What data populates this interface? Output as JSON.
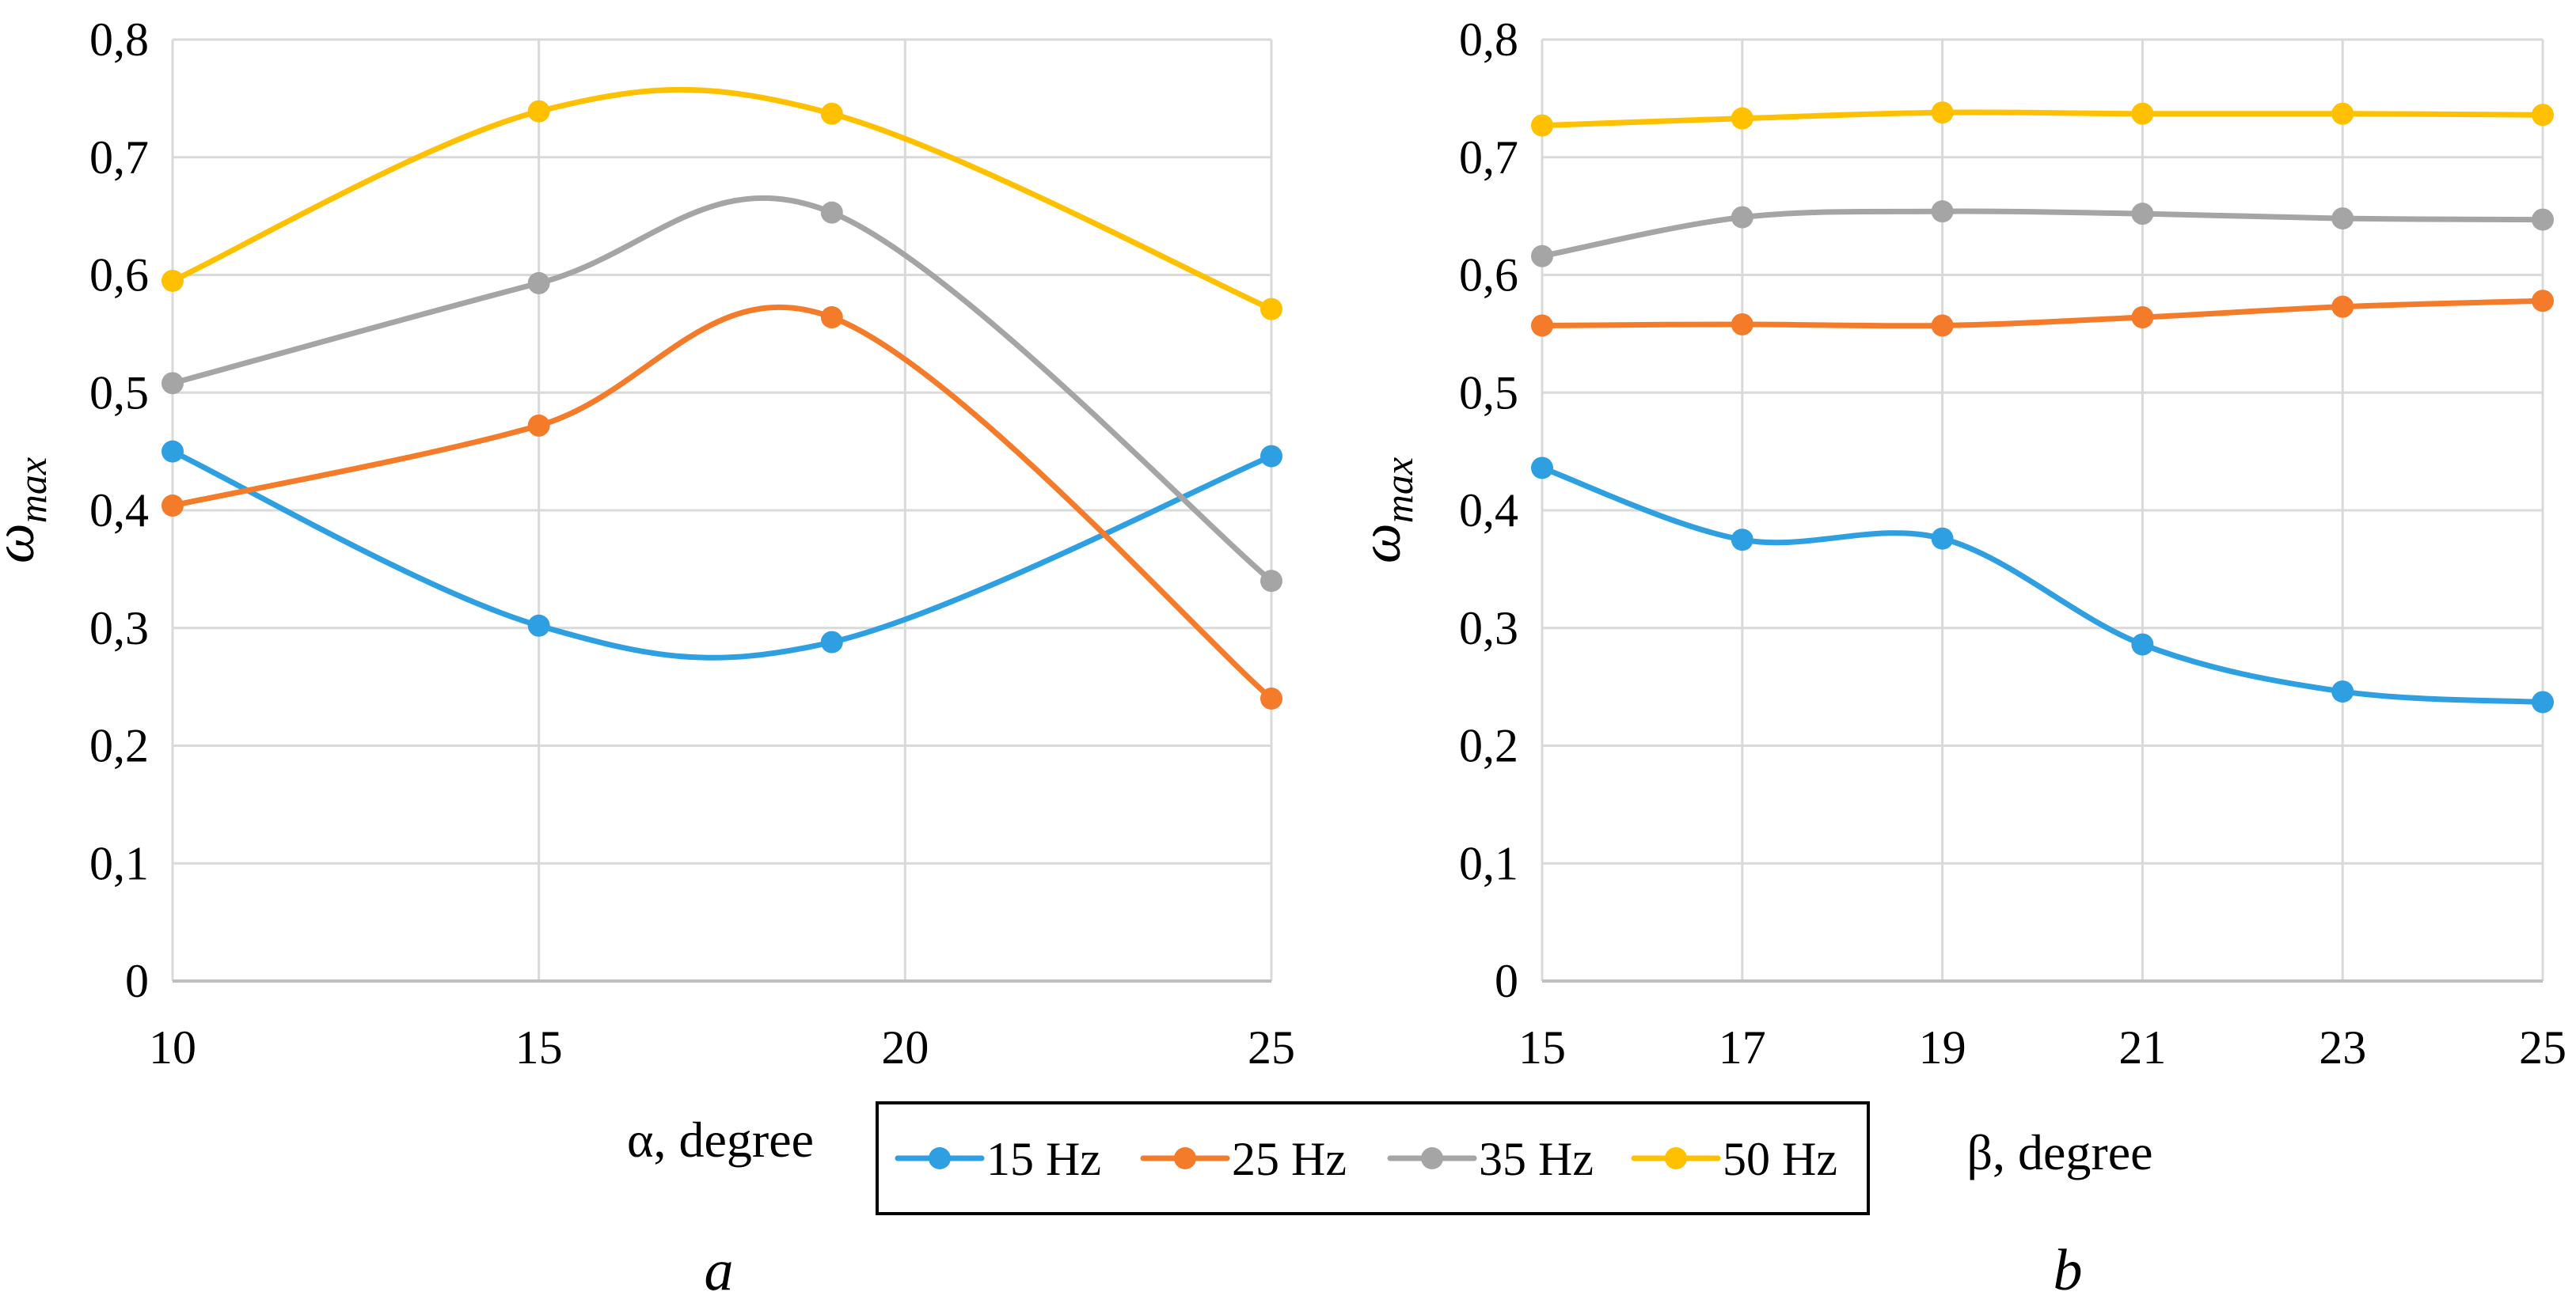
{
  "chart_data": [
    {
      "type": "line",
      "panel_label": "a",
      "xlabel": "α, degree",
      "ylabel": "ω",
      "ylabel_sub": "max",
      "x": [
        10,
        15,
        19,
        25
      ],
      "xticks": [
        "10",
        "15",
        "20",
        "25"
      ],
      "xtick_values": [
        10,
        15,
        20,
        25
      ],
      "xlim": [
        10,
        25
      ],
      "ylim": [
        0,
        0.8
      ],
      "yticks": [
        "0",
        "0,1",
        "0,2",
        "0,3",
        "0,4",
        "0,5",
        "0,6",
        "0,7",
        "0,8"
      ],
      "ytick_values": [
        0,
        0.1,
        0.2,
        0.3,
        0.4,
        0.5,
        0.6,
        0.7,
        0.8
      ],
      "grid": true,
      "series": [
        {
          "name": "15 Hz",
          "values": [
            0.45,
            0.302,
            0.288,
            0.446
          ]
        },
        {
          "name": "25 Hz",
          "values": [
            0.404,
            0.472,
            0.564,
            0.24
          ]
        },
        {
          "name": "35 Hz",
          "values": [
            0.508,
            0.593,
            0.653,
            0.34
          ]
        },
        {
          "name": "50 Hz",
          "values": [
            0.595,
            0.739,
            0.737,
            0.571
          ]
        }
      ]
    },
    {
      "type": "line",
      "panel_label": "b",
      "xlabel": "β, degree",
      "ylabel": "ω",
      "ylabel_sub": "max",
      "x": [
        15,
        17,
        19,
        21,
        23,
        25
      ],
      "xticks": [
        "15",
        "17",
        "19",
        "21",
        "23",
        "25"
      ],
      "xtick_values": [
        15,
        17,
        19,
        21,
        23,
        25
      ],
      "xlim": [
        15,
        25
      ],
      "ylim": [
        0,
        0.8
      ],
      "yticks": [
        "0",
        "0,1",
        "0,2",
        "0,3",
        "0,4",
        "0,5",
        "0,6",
        "0,7",
        "0,8"
      ],
      "ytick_values": [
        0,
        0.1,
        0.2,
        0.3,
        0.4,
        0.5,
        0.6,
        0.7,
        0.8
      ],
      "grid": true,
      "series": [
        {
          "name": "15 Hz",
          "values": [
            0.436,
            0.375,
            0.376,
            0.286,
            0.246,
            0.237
          ]
        },
        {
          "name": "25 Hz",
          "values": [
            0.557,
            0.558,
            0.557,
            0.564,
            0.573,
            0.578
          ]
        },
        {
          "name": "35 Hz",
          "values": [
            0.616,
            0.649,
            0.654,
            0.652,
            0.648,
            0.647
          ]
        },
        {
          "name": "50 Hz",
          "values": [
            0.727,
            0.733,
            0.738,
            0.737,
            0.737,
            0.736
          ]
        }
      ]
    }
  ],
  "legend": {
    "placement": "bottom-center",
    "items": [
      "15 Hz",
      "25 Hz",
      "35 Hz",
      "50 Hz"
    ]
  },
  "colors": {
    "15 Hz": "#2E9FE0",
    "25 Hz": "#F47B2A",
    "35 Hz": "#A5A5A5",
    "50 Hz": "#FFC000",
    "grid": "#D9D9D9",
    "axis": "#BFBFBF"
  }
}
